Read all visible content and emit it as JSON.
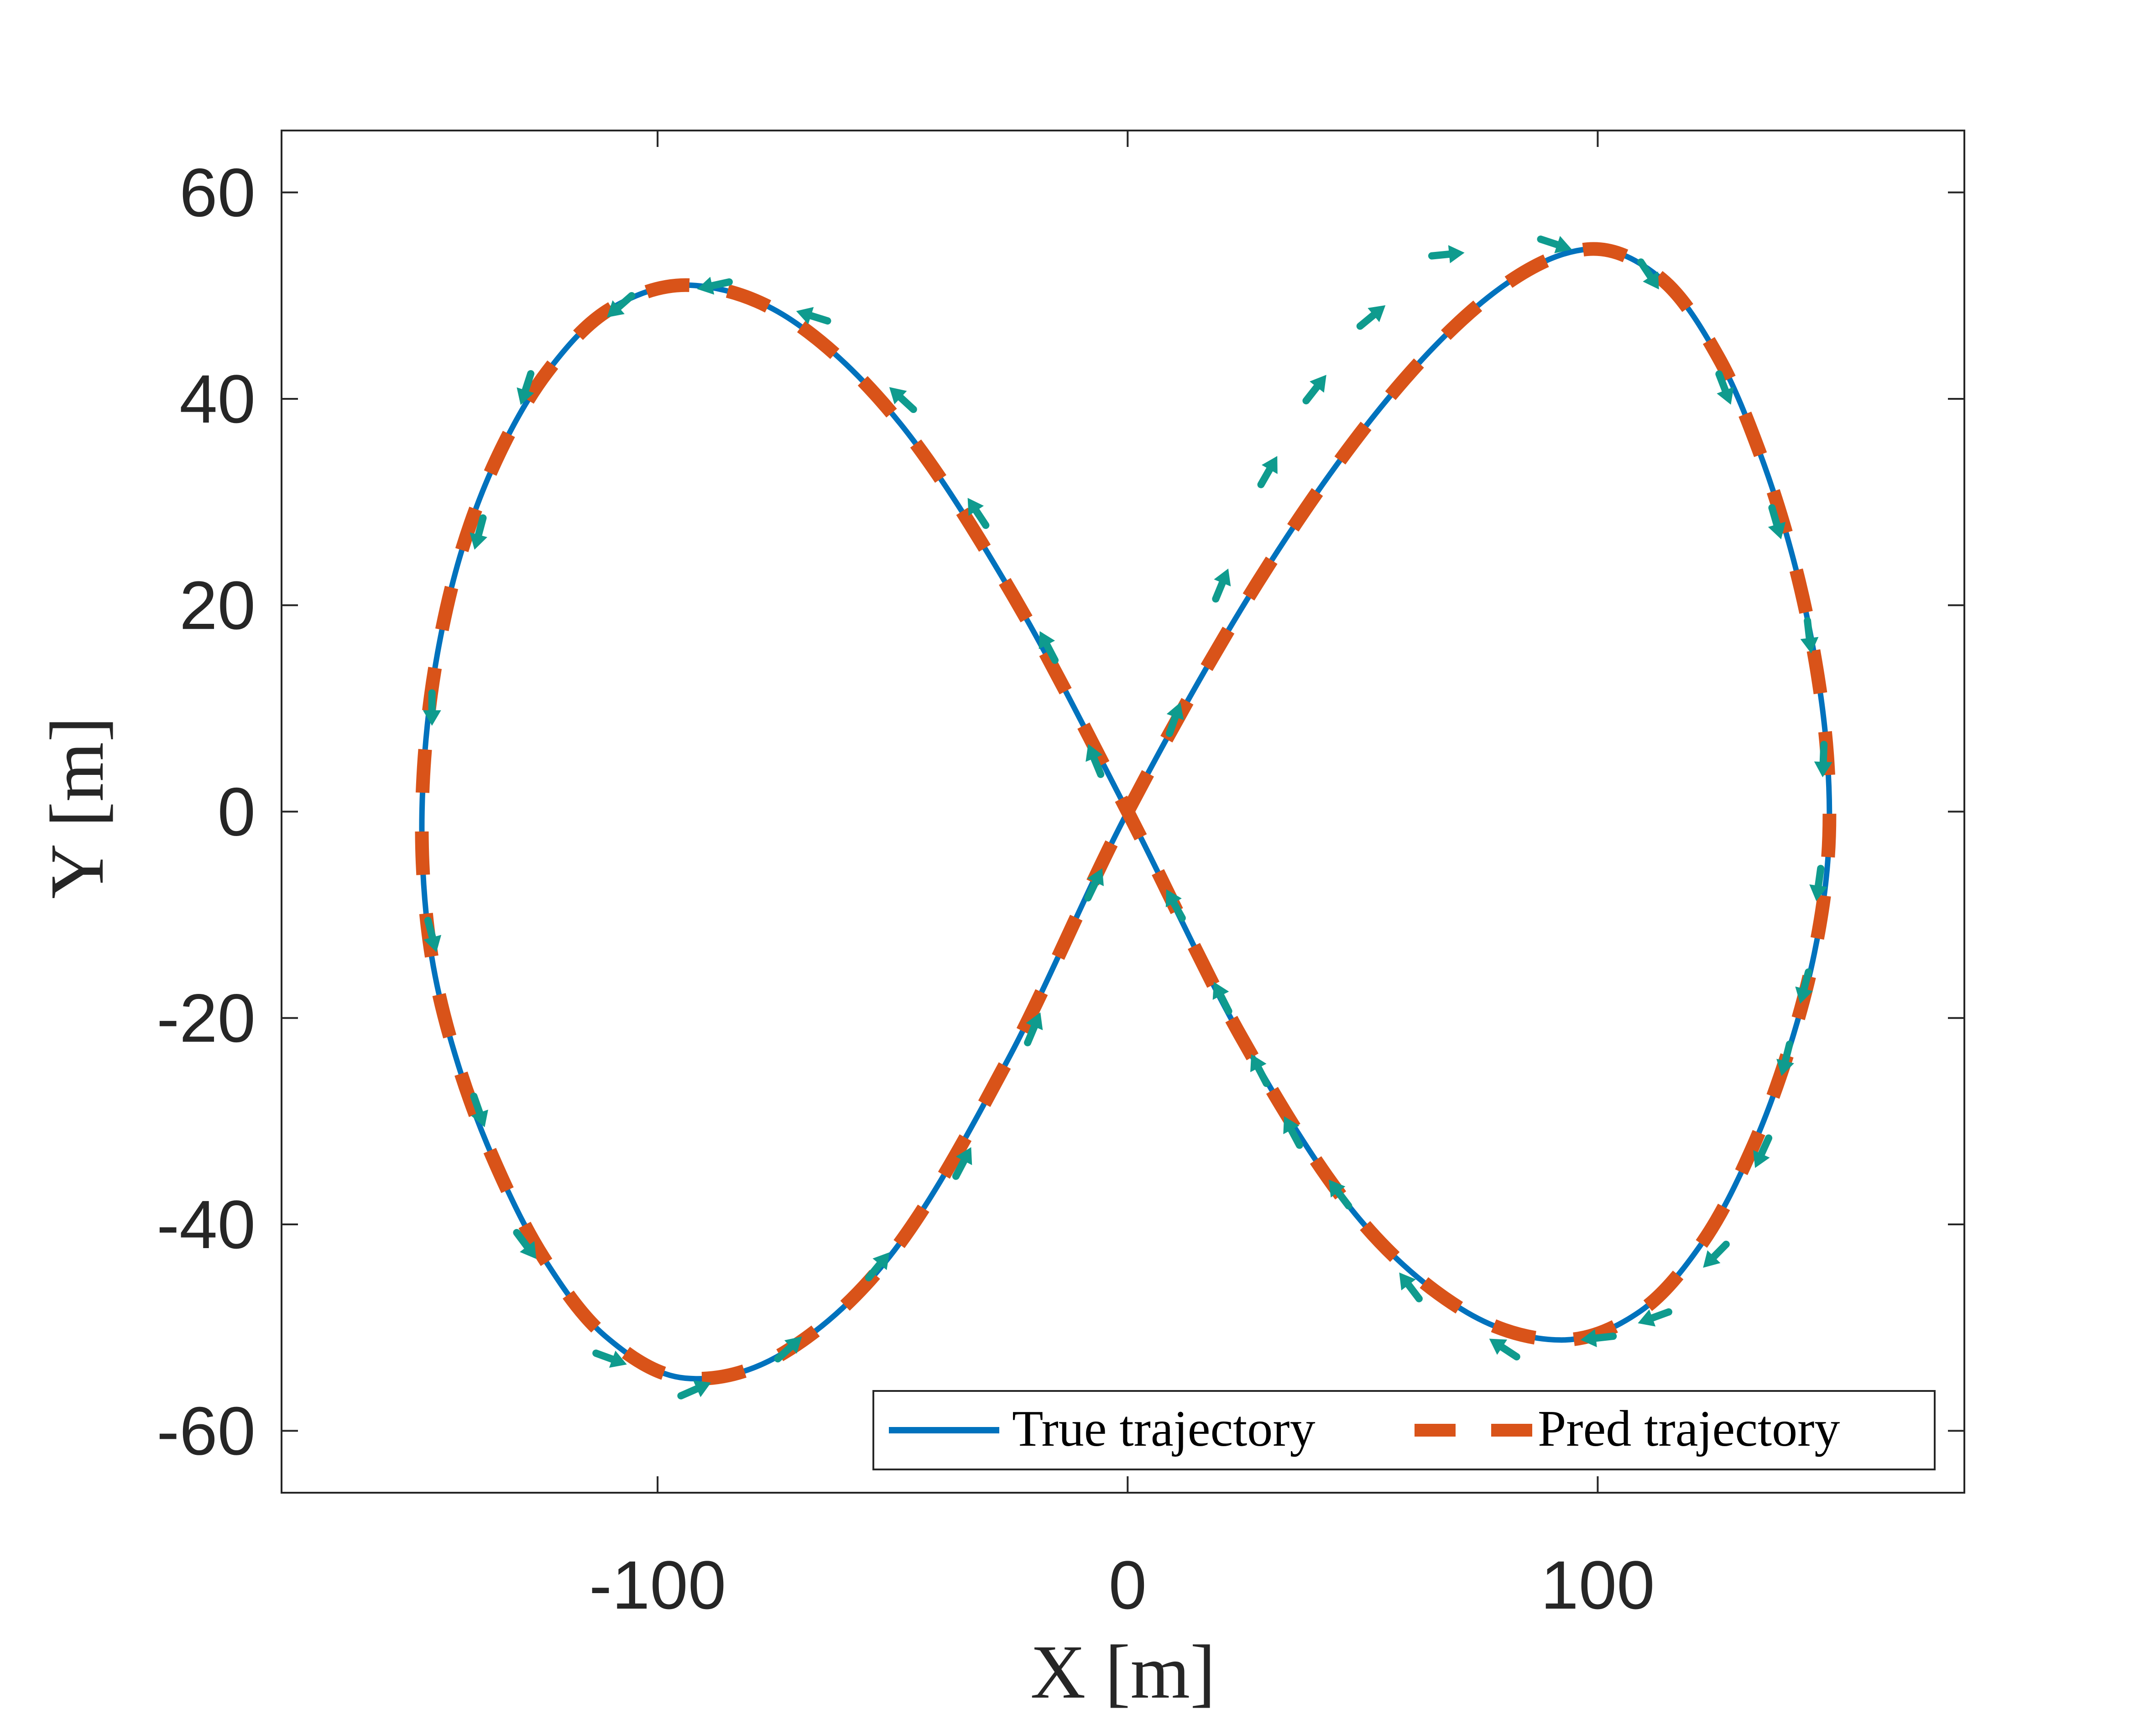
{
  "chart_data": {
    "type": "line",
    "xlabel": "X [m]",
    "ylabel": "Y [m]",
    "xlim": [
      -180,
      178
    ],
    "ylim": [
      -66,
      66
    ],
    "xticks": [
      -100,
      0,
      100
    ],
    "yticks": [
      -60,
      -40,
      -20,
      0,
      20,
      40,
      60
    ],
    "xtick_labels": [
      "-100",
      "0",
      "100"
    ],
    "ytick_labels": [
      "-60",
      "-40",
      "-20",
      "0",
      "20",
      "40",
      "60"
    ],
    "grid": false,
    "legend_position": "bottom-right",
    "legend_entries": [
      "True trajectory",
      "Pred trajectory"
    ],
    "series": [
      {
        "name": "True trajectory",
        "color": "#0072BD",
        "style": "solid",
        "x": [
          0,
          27.5,
          53.9,
          77.7,
          97.8,
          113.6,
          125.7,
          134.7,
          141.6,
          146.3,
          148.9,
          149.0,
          146.1,
          140.5,
          132.7,
          122.5,
          109.1,
          92.0,
          71.0,
          47.9,
          24.0,
          0,
          -24.2,
          -48.2,
          -71.4,
          -92.6,
          -110.1,
          -123.5,
          -133.8,
          -141.6,
          -146.8,
          -149.6,
          -150.0,
          -147.7,
          -142.3,
          -134.5,
          -124.3,
          -111.2,
          -94.1,
          -73.0,
          -49.6,
          -25.2,
          0
        ],
        "y": [
          0,
          22.1,
          39.2,
          50.2,
          54.5,
          51.6,
          44.0,
          34.5,
          24.5,
          14.6,
          4.9,
          -4.4,
          -13.7,
          -23.3,
          -32.8,
          -41.6,
          -48.4,
          -51.2,
          -48.2,
          -38.7,
          -21.7,
          0,
          20.8,
          37.5,
          47.6,
          51.0,
          48.7,
          42.6,
          34.6,
          25.4,
          15.4,
          5.2,
          -5.0,
          -15.0,
          -24.7,
          -34.1,
          -43.2,
          -50.8,
          -54.9,
          -52.4,
          -42.5,
          -23.8,
          0
        ]
      },
      {
        "name": "Pred trajectory",
        "color": "#D95319",
        "style": "dashed",
        "x": [
          0,
          27.5,
          53.9,
          77.7,
          97.8,
          113.6,
          125.7,
          134.7,
          141.6,
          146.3,
          148.9,
          149.0,
          146.1,
          140.5,
          132.7,
          122.5,
          109.1,
          92.0,
          71.0,
          47.9,
          24.0,
          0,
          -24.2,
          -48.2,
          -71.4,
          -92.6,
          -110.1,
          -123.5,
          -133.8,
          -141.6,
          -146.8,
          -149.6,
          -150.0,
          -147.7,
          -142.3,
          -134.5,
          -124.3,
          -111.2,
          -94.1,
          -73.0,
          -49.6,
          -25.2,
          0
        ],
        "y": [
          0,
          22.1,
          39.2,
          50.2,
          54.5,
          51.6,
          44.0,
          34.5,
          24.5,
          14.6,
          4.9,
          -4.4,
          -13.7,
          -23.3,
          -32.8,
          -41.6,
          -48.4,
          -51.2,
          -48.2,
          -38.7,
          -21.7,
          0,
          20.8,
          37.5,
          47.6,
          51.0,
          48.7,
          42.6,
          34.6,
          25.4,
          15.4,
          5.2,
          -5.0,
          -15.0,
          -24.7,
          -34.1,
          -43.2,
          -50.8,
          -54.9,
          -52.4,
          -42.5,
          -23.8,
          0
        ]
      }
    ],
    "arrows": {
      "color": "#0F9B8E",
      "points": [
        [
          10,
          9
        ],
        [
          20,
          22
        ],
        [
          30,
          33
        ],
        [
          40,
          41
        ],
        [
          52,
          48
        ],
        [
          68,
          54
        ],
        [
          91,
          55
        ],
        [
          111,
          52
        ],
        [
          127,
          41
        ],
        [
          138,
          28
        ],
        [
          145,
          17
        ],
        [
          148,
          5
        ],
        [
          147,
          -7
        ],
        [
          144,
          -17
        ],
        [
          140,
          -24
        ],
        [
          135,
          -33
        ],
        [
          125,
          -43
        ],
        [
          112,
          -49
        ],
        [
          100,
          -51
        ],
        [
          80,
          -52
        ],
        [
          60,
          -46
        ],
        [
          45,
          -37
        ],
        [
          35,
          -31
        ],
        [
          28,
          -25
        ],
        [
          20,
          -18
        ],
        [
          10,
          -9
        ],
        [
          -7,
          5
        ],
        [
          -17,
          16
        ],
        [
          -32,
          29
        ],
        [
          -48,
          40
        ],
        [
          -67,
          48
        ],
        [
          -88,
          51
        ],
        [
          -108,
          49
        ],
        [
          -128,
          41
        ],
        [
          -138,
          27
        ],
        [
          -148,
          10
        ],
        [
          -148,
          -12
        ],
        [
          -138,
          -29
        ],
        [
          -128,
          -42
        ],
        [
          -110,
          -53
        ],
        [
          -92,
          -56
        ],
        [
          -72,
          -52
        ],
        [
          -53,
          -44
        ],
        [
          -35,
          -34
        ],
        [
          -20,
          -21
        ],
        [
          -7,
          -7
        ]
      ]
    }
  }
}
